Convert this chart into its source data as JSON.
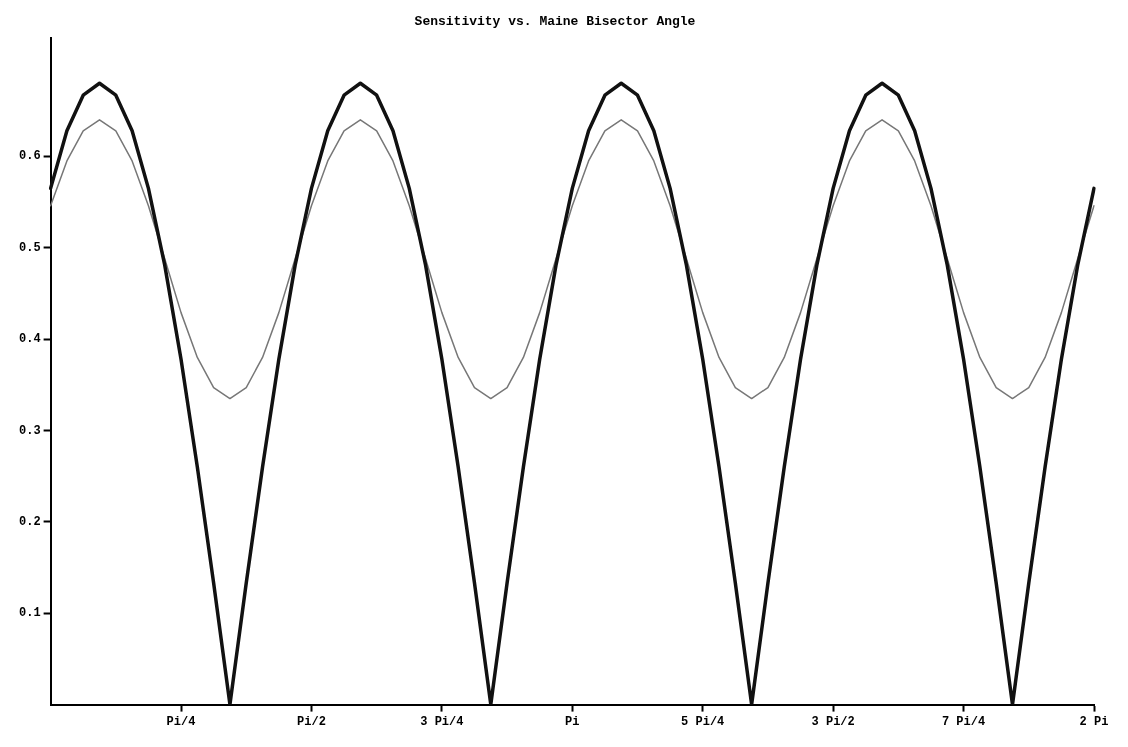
{
  "chart_data": {
    "type": "line",
    "title": "Sensitivity vs. Maine Bisector Angle",
    "marker": "none",
    "grid": false,
    "categories": [
      null,
      null,
      null,
      null,
      null,
      null,
      null,
      null,
      "Pi/4",
      null,
      null,
      null,
      null,
      null,
      null,
      null,
      "Pi/2",
      null,
      null,
      null,
      null,
      null,
      null,
      null,
      "3 Pi/4",
      null,
      null,
      null,
      null,
      null,
      null,
      null,
      "Pi",
      null,
      null,
      null,
      null,
      null,
      null,
      null,
      "5 Pi/4",
      null,
      null,
      null,
      null,
      null,
      null,
      null,
      "3 Pi/2",
      null,
      null,
      null,
      null,
      null,
      null,
      null,
      "7 Pi/4",
      null,
      null,
      null,
      null,
      null,
      null,
      null,
      "2 Pi"
    ],
    "ylim": [
      0,
      0.73
    ],
    "yticks": [
      0.1,
      0.2,
      0.3,
      0.4,
      0.5,
      0.6
    ],
    "series": [
      {
        "color": "#111111",
        "values": [
          0.565,
          0.628,
          0.667,
          0.68,
          0.667,
          0.628,
          0.565,
          0.481,
          0.378,
          0.26,
          0.133,
          0,
          0.133,
          0.26,
          0.378,
          0.481,
          0.565,
          0.628,
          0.667,
          0.68,
          0.667,
          0.628,
          0.565,
          0.481,
          0.378,
          0.26,
          0.133,
          0,
          0.133,
          0.26,
          0.378,
          0.481,
          0.565,
          0.628,
          0.667,
          0.68,
          0.667,
          0.628,
          0.565,
          0.481,
          0.378,
          0.26,
          0.133,
          0,
          0.133,
          0.26,
          0.378,
          0.481,
          0.565,
          0.628,
          0.667,
          0.68,
          0.667,
          0.628,
          0.565,
          0.481,
          0.378,
          0.26,
          0.133,
          0,
          0.133,
          0.26,
          0.378,
          0.481,
          0.565
        ]
      },
      {
        "color": "#777777",
        "values": [
          0.546,
          0.595,
          0.628,
          0.64,
          0.628,
          0.595,
          0.546,
          0.488,
          0.429,
          0.38,
          0.347,
          0.335,
          0.347,
          0.38,
          0.429,
          0.488,
          0.546,
          0.595,
          0.628,
          0.64,
          0.628,
          0.595,
          0.546,
          0.488,
          0.429,
          0.38,
          0.347,
          0.335,
          0.347,
          0.38,
          0.429,
          0.488,
          0.546,
          0.595,
          0.628,
          0.64,
          0.628,
          0.595,
          0.546,
          0.488,
          0.429,
          0.38,
          0.347,
          0.335,
          0.347,
          0.38,
          0.429,
          0.488,
          0.546,
          0.595,
          0.628,
          0.64,
          0.628,
          0.595,
          0.546,
          0.488,
          0.429,
          0.38,
          0.347,
          0.335,
          0.347,
          0.38,
          0.429,
          0.488,
          0.546
        ]
      }
    ]
  }
}
